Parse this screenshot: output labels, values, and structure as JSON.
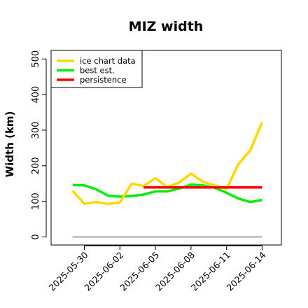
{
  "chart_data": {
    "type": "line",
    "title": "MIZ width",
    "xlabel": "",
    "ylabel": "Width (km)",
    "ylim": [
      0,
      500
    ],
    "xlim_days": [
      -0.9,
      15.0
    ],
    "y_ticks": [
      0,
      100,
      200,
      300,
      400,
      500
    ],
    "x_ticks": [
      {
        "label": "2025-05-30",
        "day": 0
      },
      {
        "label": "2025-06-02",
        "day": 3
      },
      {
        "label": "2025-06-05",
        "day": 6
      },
      {
        "label": "2025-06-08",
        "day": 9
      },
      {
        "label": "2025-06-11",
        "day": 12
      },
      {
        "label": "2025-06-14",
        "day": 15
      }
    ],
    "legend_position": "top-left",
    "grid": false,
    "series": [
      {
        "name": "ice chart data",
        "color": "#FFD700",
        "x": [
          -1,
          0,
          1,
          2,
          3,
          4,
          5,
          6,
          7,
          8,
          9,
          10,
          11,
          12,
          13,
          14,
          15
        ],
        "values": [
          130,
          93,
          98,
          93,
          97,
          150,
          143,
          165,
          140,
          153,
          178,
          155,
          145,
          135,
          205,
          243,
          322
        ]
      },
      {
        "name": "best est.",
        "color": "#00EE00",
        "x": [
          -1,
          0,
          1,
          2,
          3,
          4,
          5,
          6,
          7,
          8,
          9,
          10,
          11,
          12,
          13,
          14,
          15
        ],
        "values": [
          146,
          145,
          134,
          116,
          113,
          115,
          119,
          128,
          128,
          136,
          147,
          145,
          138,
          124,
          108,
          98,
          104
        ]
      },
      {
        "name": "persistence",
        "color": "#FF0000",
        "x": [
          5,
          15
        ],
        "values": [
          139,
          139
        ]
      },
      {
        "name": "",
        "color": "#808080",
        "x": [
          -1,
          15
        ],
        "values": [
          0,
          0
        ]
      }
    ]
  }
}
